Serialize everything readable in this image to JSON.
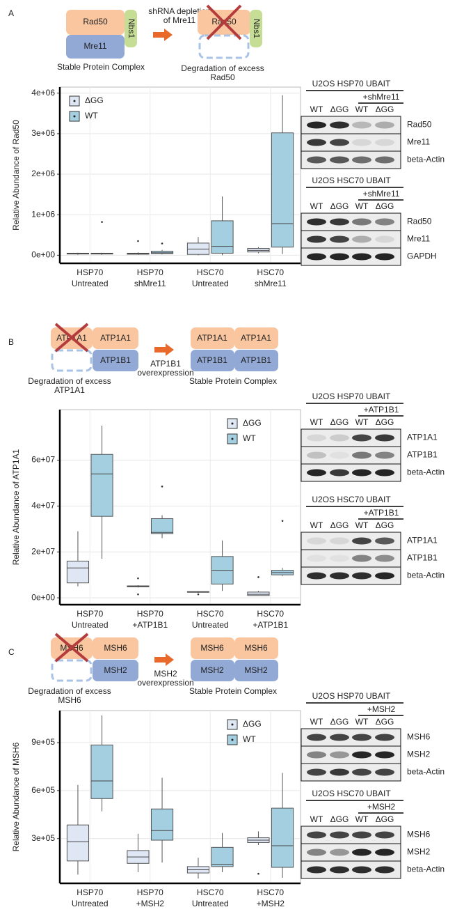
{
  "panels": [
    {
      "label": "A",
      "schematic": {
        "before": [
          "Rad50",
          "Mre11",
          "Nbs1"
        ],
        "before_caption": [
          "Stable Protein Complex"
        ],
        "arrow_caption": [
          "shRNA depletion",
          "of Mre11"
        ],
        "after": [
          "Rad50",
          "Nbs1"
        ],
        "after_caption": [
          "Degradation of excess",
          "Rad50"
        ]
      },
      "blots": [
        {
          "title": "U2OS HSP70 UBAIT",
          "treatment": "+shMre11",
          "lanes": [
            "WT",
            "ΔGG",
            "WT",
            "ΔGG"
          ],
          "rows": [
            "Rad50",
            "Mre11",
            "beta-Actin"
          ]
        },
        {
          "title": "U2OS HSC70 UBAIT",
          "treatment": "+shMre11",
          "lanes": [
            "WT",
            "ΔGG",
            "WT",
            "ΔGG"
          ],
          "rows": [
            "Rad50",
            "Mre11",
            "GAPDH"
          ]
        }
      ]
    },
    {
      "label": "B",
      "schematic": {
        "before": [
          "ATP1A1",
          "ATP1A1",
          "ATP1B1"
        ],
        "before_caption": [
          "Degradation of excess",
          "ATP1A1"
        ],
        "arrow_caption": [
          "ATP1B1",
          "overexpression"
        ],
        "after": [
          "ATP1A1",
          "ATP1A1",
          "ATP1B1",
          "ATP1B1"
        ],
        "after_caption": [
          "Stable Protein Complex"
        ]
      },
      "blots": [
        {
          "title": "U2OS HSP70 UBAIT",
          "treatment": "+ATP1B1",
          "lanes": [
            "WT",
            "ΔGG",
            "WT",
            "ΔGG"
          ],
          "rows": [
            "ATP1A1",
            "ATP1B1",
            "beta-Actin"
          ]
        },
        {
          "title": "U2OS HSC70 UBAIT",
          "treatment": "+ATP1B1",
          "lanes": [
            "WT",
            "ΔGG",
            "WT",
            "ΔGG"
          ],
          "rows": [
            "ATP1A1",
            "ATP1B1",
            "beta-Actin"
          ]
        }
      ]
    },
    {
      "label": "C",
      "schematic": {
        "before": [
          "MSH6",
          "MSH6",
          "MSH2"
        ],
        "before_caption": [
          "Degradation  of excess",
          "MSH6"
        ],
        "arrow_caption": [
          "MSH2",
          "overexpression"
        ],
        "after": [
          "MSH6",
          "MSH6",
          "MSH2",
          "MSH2"
        ],
        "after_caption": [
          "Stable Protein Complex"
        ]
      },
      "blots": [
        {
          "title": "U2OS HSP70 UBAIT",
          "treatment": "+MSH2",
          "lanes": [
            "WT",
            "ΔGG",
            "WT",
            "ΔGG"
          ],
          "rows": [
            "MSH6",
            "MSH2",
            "beta-Actin"
          ]
        },
        {
          "title": "U2OS HSC70 UBAIT",
          "treatment": "+MSH2",
          "lanes": [
            "WT",
            "ΔGG",
            "WT",
            "ΔGG"
          ],
          "rows": [
            "MSH6",
            "MSH2",
            "beta-Actin"
          ]
        }
      ]
    }
  ],
  "chart_data": [
    {
      "type": "box",
      "y_label": "Relative Abundance of Rad50",
      "categories": [
        [
          "HSP70",
          "Untreated"
        ],
        [
          "HSP70",
          "shMre11"
        ],
        [
          "HSC70",
          "Untreated"
        ],
        [
          "HSC70",
          "shMre11"
        ]
      ],
      "ylim": [
        -200000,
        4150000
      ],
      "yticks": [
        {
          "value": 0,
          "label": "0e+00"
        },
        {
          "value": 1000000,
          "label": "1e+06"
        },
        {
          "value": 2000000,
          "label": "2e+06"
        },
        {
          "value": 3000000,
          "label": "3e+06"
        },
        {
          "value": 4000000,
          "label": "4e+06"
        }
      ],
      "grid": true,
      "legend": "top-left",
      "series": [
        {
          "name": "ΔGG",
          "color": "#dfe7f4",
          "boxes": [
            {
              "min": 10000,
              "q1": 30000,
              "median": 40000,
              "q3": 50000,
              "max": 60000,
              "outliers": []
            },
            {
              "min": 10000,
              "q1": 25000,
              "median": 40000,
              "q3": 50000,
              "max": 70000,
              "outliers": [
                350000
              ]
            },
            {
              "min": 0,
              "q1": 20000,
              "median": 150000,
              "q3": 300000,
              "max": 450000,
              "outliers": []
            },
            {
              "min": 50000,
              "q1": 80000,
              "median": 120000,
              "q3": 170000,
              "max": 200000,
              "outliers": []
            }
          ]
        },
        {
          "name": "WT",
          "color": "#a4cfe0",
          "boxes": [
            {
              "min": 10000,
              "q1": 30000,
              "median": 40000,
              "q3": 50000,
              "max": 60000,
              "outliers": [
                820000
              ]
            },
            {
              "min": 20000,
              "q1": 40000,
              "median": 60000,
              "q3": 100000,
              "max": 130000,
              "outliers": [
                290000
              ]
            },
            {
              "min": 0,
              "q1": 50000,
              "median": 220000,
              "q3": 850000,
              "max": 1450000,
              "outliers": []
            },
            {
              "min": 30000,
              "q1": 200000,
              "median": 780000,
              "q3": 3020000,
              "max": 3950000,
              "outliers": []
            }
          ]
        }
      ]
    },
    {
      "type": "box",
      "y_label": "Relative Abundance of ATP1A1",
      "categories": [
        [
          "HSP70",
          "Untreated"
        ],
        [
          "HSP70",
          "+ATP1B1"
        ],
        [
          "HSC70",
          "Untreated"
        ],
        [
          "HSC70",
          "+ATP1B1"
        ]
      ],
      "ylim": [
        -3000000,
        82000000
      ],
      "yticks": [
        {
          "value": 0,
          "label": "0e+00"
        },
        {
          "value": 20000000,
          "label": "2e+07"
        },
        {
          "value": 40000000,
          "label": "4e+07"
        },
        {
          "value": 60000000,
          "label": "6e+07"
        }
      ],
      "grid": true,
      "legend": "top-right",
      "series": [
        {
          "name": "ΔGG",
          "color": "#dfe7f4",
          "boxes": [
            {
              "min": 5000000,
              "q1": 6500000,
              "median": 13000000,
              "q3": 16000000,
              "max": 29000000,
              "outliers": []
            },
            {
              "min": 4500000,
              "q1": 4800000,
              "median": 5000000,
              "q3": 5200000,
              "max": 5500000,
              "outliers": [
                8500000,
                1500000
              ]
            },
            {
              "min": 2200000,
              "q1": 2400000,
              "median": 2500000,
              "q3": 2700000,
              "max": 2900000,
              "outliers": [
                1500000
              ]
            },
            {
              "min": 1000000,
              "q1": 1000000,
              "median": 1500000,
              "q3": 2500000,
              "max": 3000000,
              "outliers": [
                9000000
              ]
            }
          ]
        },
        {
          "name": "WT",
          "color": "#a4cfe0",
          "boxes": [
            {
              "min": 17000000,
              "q1": 35500000,
              "median": 54000000,
              "q3": 62500000,
              "max": 75000000,
              "outliers": []
            },
            {
              "min": 26000000,
              "q1": 28000000,
              "median": 28500000,
              "q3": 34500000,
              "max": 36000000,
              "outliers": [
                48500000
              ]
            },
            {
              "min": 3000000,
              "q1": 6000000,
              "median": 12000000,
              "q3": 18000000,
              "max": 25000000,
              "outliers": []
            },
            {
              "min": 9500000,
              "q1": 10000000,
              "median": 11000000,
              "q3": 12000000,
              "max": 13000000,
              "outliers": [
                33500000
              ]
            }
          ]
        }
      ]
    },
    {
      "type": "box",
      "y_label": "Relative Abundance of MSH6",
      "categories": [
        [
          "HSP70",
          "Untreated"
        ],
        [
          "HSP70",
          "+MSH2"
        ],
        [
          "HSC70",
          "Untreated"
        ],
        [
          "HSC70",
          "+MSH2"
        ]
      ],
      "ylim": [
        20000,
        1100000
      ],
      "yticks": [
        {
          "value": 300000,
          "label": "3e+05"
        },
        {
          "value": 600000,
          "label": "6e+05"
        },
        {
          "value": 900000,
          "label": "9e+05"
        }
      ],
      "grid": true,
      "legend": "top-right",
      "series": [
        {
          "name": "ΔGG",
          "color": "#dfe7f4",
          "boxes": [
            {
              "min": 75000,
              "q1": 160000,
              "median": 280000,
              "q3": 385000,
              "max": 635000,
              "outliers": []
            },
            {
              "min": 90000,
              "q1": 145000,
              "median": 185000,
              "q3": 225000,
              "max": 330000,
              "outliers": []
            },
            {
              "min": 50000,
              "q1": 85000,
              "median": 105000,
              "q3": 125000,
              "max": 180000,
              "outliers": []
            },
            {
              "min": 260000,
              "q1": 275000,
              "median": 290000,
              "q3": 305000,
              "max": 345000,
              "outliers": [
                80000
              ]
            }
          ]
        },
        {
          "name": "WT",
          "color": "#a4cfe0",
          "boxes": [
            {
              "min": 470000,
              "q1": 550000,
              "median": 660000,
              "q3": 885000,
              "max": 1070000,
              "outliers": []
            },
            {
              "min": 150000,
              "q1": 290000,
              "median": 350000,
              "q3": 485000,
              "max": 680000,
              "outliers": []
            },
            {
              "min": 90000,
              "q1": 125000,
              "median": 140000,
              "q3": 245000,
              "max": 335000,
              "outliers": []
            },
            {
              "min": 55000,
              "q1": 120000,
              "median": 255000,
              "q3": 490000,
              "max": 710000,
              "outliers": []
            }
          ]
        }
      ]
    }
  ]
}
